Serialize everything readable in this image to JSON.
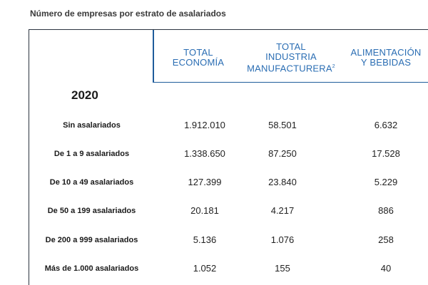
{
  "caption": "Número de empresas por estrato de asalariados",
  "columns": [
    {
      "line1": "TOTAL",
      "line2": "ECONOMÍA",
      "line3": "",
      "sup": ""
    },
    {
      "line1": "TOTAL",
      "line2": "INDUSTRIA",
      "line3": "MANUFACTURERA",
      "sup": "2"
    },
    {
      "line1": "ALIMENTACIÓN",
      "line2": "Y BEBIDAS",
      "line3": "",
      "sup": ""
    }
  ],
  "year": "2020",
  "rows": [
    {
      "label": "Sin asalariados",
      "values": [
        "1.912.010",
        "58.501",
        "6.632"
      ]
    },
    {
      "label": "De 1 a 9 asalariados",
      "values": [
        "1.338.650",
        "87.250",
        "17.528"
      ]
    },
    {
      "label": "De 10 a 49 asalariados",
      "values": [
        "127.399",
        "23.840",
        "5.229"
      ]
    },
    {
      "label": "De 50 a 199 asalariados",
      "values": [
        "20.181",
        "4.217",
        "886"
      ]
    },
    {
      "label": "De 200 a 999 asalariados",
      "values": [
        "5.136",
        "1.076",
        "258"
      ]
    },
    {
      "label": "Más de 1.000 asalariados",
      "values": [
        "1.052",
        "155",
        "40"
      ]
    }
  ],
  "colors": {
    "header": "#2a6db3",
    "rule": "#1f5c9b",
    "frame": "#2b3440"
  }
}
